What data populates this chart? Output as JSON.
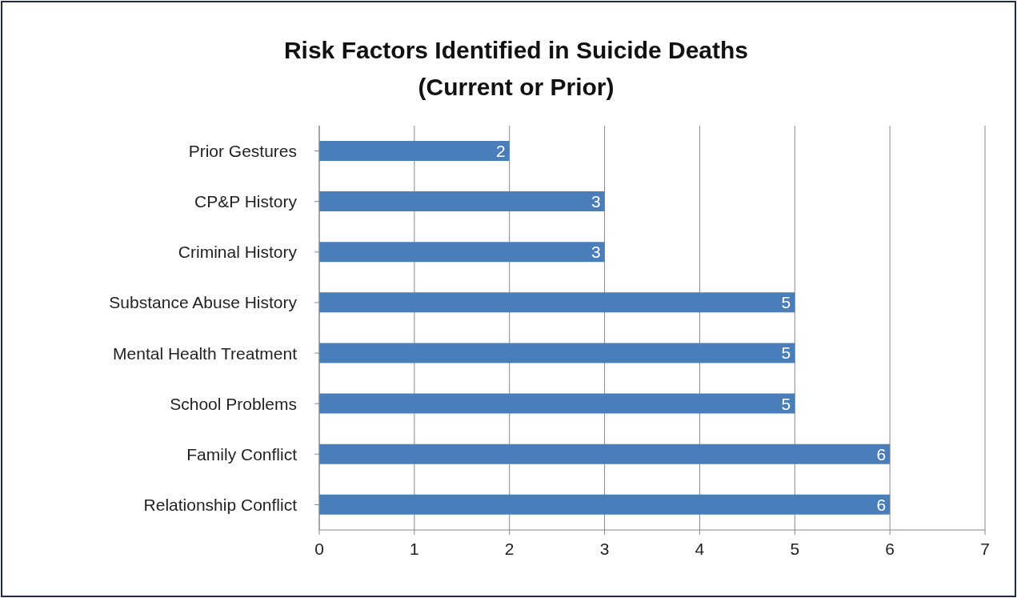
{
  "chart_data": {
    "type": "bar",
    "orientation": "horizontal",
    "title": "Risk Factors Identified in Suicide Deaths\n(Current or Prior)",
    "categories": [
      "Prior Gestures",
      "CP&P History",
      "Criminal History",
      "Substance Abuse History",
      "Mental Health Treatment",
      "School Problems",
      "Family Conflict",
      "Relationship Conflict"
    ],
    "values": [
      2,
      3,
      3,
      5,
      5,
      5,
      6,
      6
    ],
    "color": "#4a7ebb",
    "xlim": [
      0,
      7
    ],
    "xticks": [
      0,
      1,
      2,
      3,
      4,
      5,
      6,
      7
    ],
    "grid": "x",
    "data_labels": true
  }
}
